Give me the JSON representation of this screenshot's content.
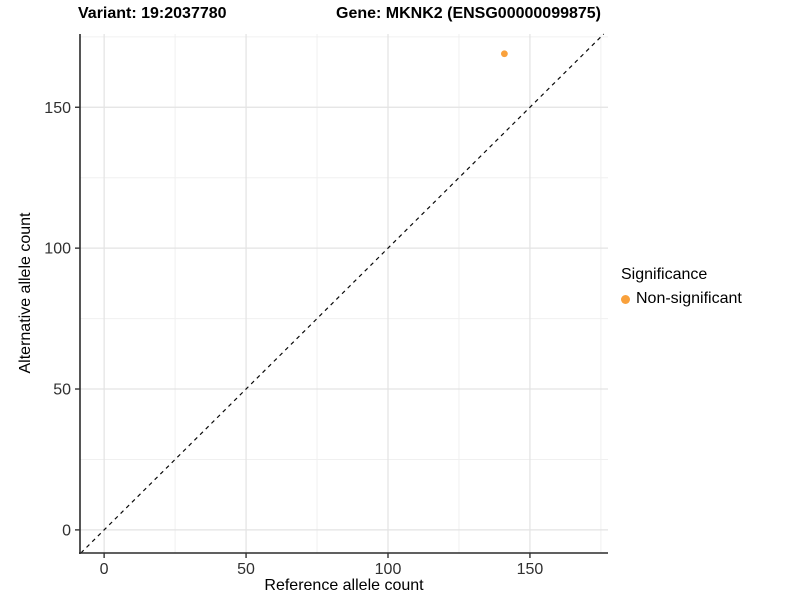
{
  "title": {
    "variant_label": "Variant: 19:2037780",
    "gene_label": "Gene: MKNK2 (ENSG00000099875)"
  },
  "axes": {
    "x_label": "Reference allele count",
    "y_label": "Alternative allele count"
  },
  "legend": {
    "title": "Significance",
    "entries": [
      {
        "label": "Non-significant",
        "color": "#F9A13C"
      }
    ]
  },
  "chart_data": {
    "type": "scatter",
    "title": "Variant: 19:2037780    Gene: MKNK2 (ENSG00000099875)",
    "xlabel": "Reference allele count",
    "ylabel": "Alternative allele count",
    "xlim": [
      -8.5,
      177.5
    ],
    "ylim": [
      -8.2,
      176
    ],
    "x_ticks": [
      0,
      50,
      100,
      150
    ],
    "y_ticks": [
      0,
      50,
      100,
      150
    ],
    "x_minor_ticks": [
      25,
      75,
      125,
      175
    ],
    "y_minor_ticks": [
      25,
      75,
      125,
      175
    ],
    "grid": true,
    "legend_position": "right",
    "series": [
      {
        "name": "Non-significant",
        "color": "#F9A13C",
        "point_radius": 3.4,
        "points": [
          [
            141,
            169
          ]
        ]
      }
    ],
    "reference_line": {
      "type": "identity",
      "slope": 1,
      "intercept": 0,
      "style": "dashed",
      "color": "#0a0a0a"
    }
  },
  "colors": {
    "background": "#FFFFFF",
    "grid_major": "#E3E3E3",
    "grid_minor": "#F0F0F0",
    "axis_line": "#2B2B2B",
    "tick_mark": "#333333",
    "tick_label": "#303030",
    "point": "#F9A13C"
  }
}
